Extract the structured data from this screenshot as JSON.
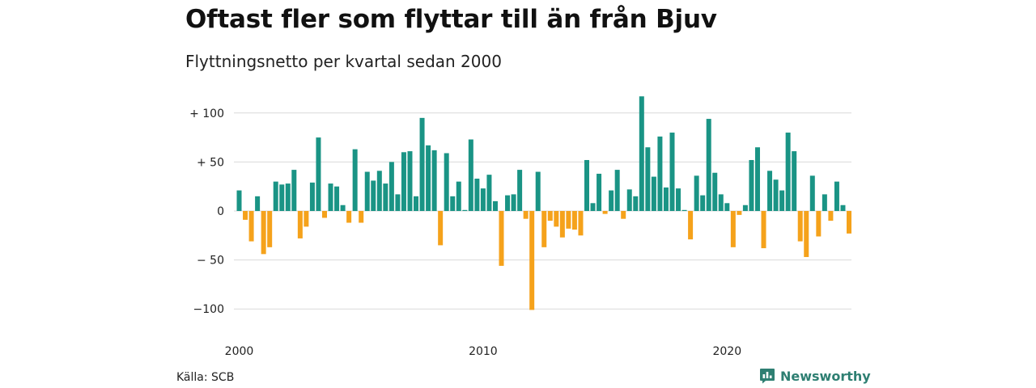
{
  "header": {
    "title": "Oftast fler som flyttar till än från Bjuv",
    "subtitle": "Flyttningsnetto per kvartal sedan 2000"
  },
  "footer": {
    "source": "Källa: SCB",
    "brand_name": "Newsworthy",
    "brand_icon": "bar-chart-speech-bubble-icon"
  },
  "colors": {
    "positive": "#1a9485",
    "negative": "#f5a21b",
    "grid": "#d9d9d9",
    "brand": "#2e7f72"
  },
  "chart_data": {
    "type": "bar",
    "title": "Oftast fler som flyttar till än från Bjuv",
    "subtitle": "Flyttningsnetto per kvartal sedan 2000",
    "x_start": "2000 Q1",
    "x_ticks": [
      {
        "label": "2000",
        "index": 0
      },
      {
        "label": "2010",
        "index": 40
      },
      {
        "label": "2020",
        "index": 80
      }
    ],
    "y_ticks": [
      {
        "label": "+ 100",
        "value": 100
      },
      {
        "label": "+  50",
        "value": 50
      },
      {
        "label": "0",
        "value": 0
      },
      {
        "label": "− 50",
        "value": -50
      },
      {
        "label": "−100",
        "value": -100
      }
    ],
    "ylim": [
      -105,
      120
    ],
    "grid": true,
    "values": [
      21,
      -9,
      -31,
      15,
      -44,
      -37,
      30,
      27,
      28,
      42,
      -28,
      -16,
      29,
      75,
      -7,
      28,
      25,
      6,
      -12,
      63,
      -12,
      40,
      31,
      41,
      28,
      50,
      17,
      60,
      61,
      15,
      95,
      67,
      62,
      -35,
      59,
      15,
      30,
      1,
      73,
      33,
      23,
      37,
      10,
      -56,
      16,
      17,
      42,
      -8,
      -101,
      40,
      -37,
      -10,
      -16,
      -27,
      -18,
      -19,
      -25,
      52,
      8,
      38,
      -3,
      21,
      42,
      -8,
      22,
      15,
      117,
      65,
      35,
      76,
      24,
      80,
      23,
      1,
      -29,
      36,
      16,
      94,
      39,
      17,
      8,
      -37,
      -4,
      6,
      52,
      65,
      -38,
      41,
      32,
      21,
      80,
      61,
      -31,
      -47,
      36,
      -26,
      17,
      -10,
      30,
      6,
      -23
    ]
  }
}
